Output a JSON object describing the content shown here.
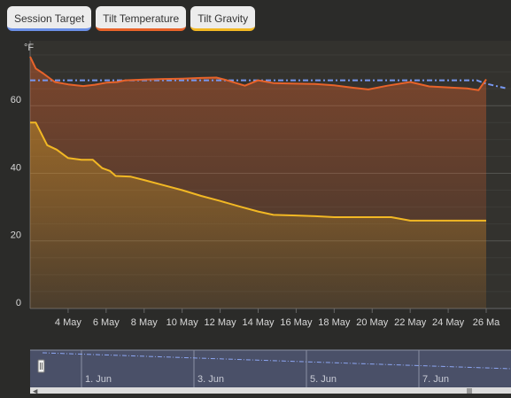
{
  "tabs": [
    {
      "label": "Session Target",
      "color": "#6b8fe6"
    },
    {
      "label": "Tilt Temperature",
      "color": "#e8632a"
    },
    {
      "label": "Tilt Gravity",
      "color": "#f2b824"
    }
  ],
  "chart_data": {
    "type": "line",
    "y_unit_label": "°F",
    "y_ticks": [
      "0",
      "20",
      "40",
      "60"
    ],
    "ylim": [
      0,
      75
    ],
    "x_ticks": [
      "4 May",
      "6 May",
      "8 May",
      "10 May",
      "12 May",
      "14 May",
      "16 May",
      "18 May",
      "20 May",
      "22 May",
      "24 May",
      "26 Ma"
    ],
    "x_range": [
      "2 May",
      "26 May"
    ],
    "grid": true,
    "series": [
      {
        "name": "Session Target",
        "color": "#7797f0",
        "style": "dash-dot",
        "points": [
          [
            2.0,
            67.5
          ],
          [
            25.5,
            67.5
          ],
          [
            26.0,
            66.5
          ],
          [
            27.0,
            65.2
          ]
        ]
      },
      {
        "name": "Tilt Temperature",
        "color": "#e8632a",
        "style": "solid-area",
        "points": [
          [
            2.0,
            74.5
          ],
          [
            2.3,
            71.0
          ],
          [
            2.7,
            69.5
          ],
          [
            3.3,
            67.0
          ],
          [
            4.0,
            66.3
          ],
          [
            4.8,
            65.8
          ],
          [
            5.4,
            66.2
          ],
          [
            6.0,
            66.8
          ],
          [
            6.6,
            67.0
          ],
          [
            7.0,
            67.5
          ],
          [
            8.0,
            67.7
          ],
          [
            9.0,
            67.9
          ],
          [
            10.0,
            68.0
          ],
          [
            11.0,
            68.2
          ],
          [
            11.8,
            68.3
          ],
          [
            12.3,
            67.6
          ],
          [
            13.3,
            65.9
          ],
          [
            14.0,
            67.5
          ],
          [
            14.8,
            66.7
          ],
          [
            16.0,
            66.5
          ],
          [
            17.0,
            66.4
          ],
          [
            18.0,
            66.0
          ],
          [
            19.0,
            65.3
          ],
          [
            19.8,
            64.8
          ],
          [
            20.8,
            65.9
          ],
          [
            22.0,
            67.0
          ],
          [
            23.0,
            65.7
          ],
          [
            24.0,
            65.4
          ],
          [
            25.0,
            65.1
          ],
          [
            25.6,
            64.6
          ],
          [
            26.0,
            67.8
          ]
        ]
      },
      {
        "name": "Tilt Gravity",
        "color": "#f2b824",
        "style": "solid-area",
        "points": [
          [
            2.0,
            55.0
          ],
          [
            2.3,
            55.0
          ],
          [
            2.9,
            48.3
          ],
          [
            3.4,
            47.0
          ],
          [
            4.0,
            44.5
          ],
          [
            4.7,
            44.0
          ],
          [
            5.3,
            44.0
          ],
          [
            5.8,
            41.5
          ],
          [
            6.2,
            40.7
          ],
          [
            6.5,
            39.2
          ],
          [
            7.3,
            39.0
          ],
          [
            8.0,
            38.0
          ],
          [
            9.0,
            36.5
          ],
          [
            10.0,
            35.0
          ],
          [
            11.0,
            33.3
          ],
          [
            12.0,
            31.8
          ],
          [
            13.0,
            30.2
          ],
          [
            14.0,
            28.7
          ],
          [
            14.8,
            27.7
          ],
          [
            16.0,
            27.5
          ],
          [
            17.0,
            27.3
          ],
          [
            18.0,
            27.0
          ],
          [
            19.0,
            27.0
          ],
          [
            20.0,
            27.0
          ],
          [
            21.0,
            27.0
          ],
          [
            22.0,
            26.0
          ],
          [
            26.0,
            26.0
          ]
        ]
      }
    ]
  },
  "navigator": {
    "labels": [
      "1. Jun",
      "3. Jun",
      "5. Jun",
      "7. Jun"
    ]
  }
}
